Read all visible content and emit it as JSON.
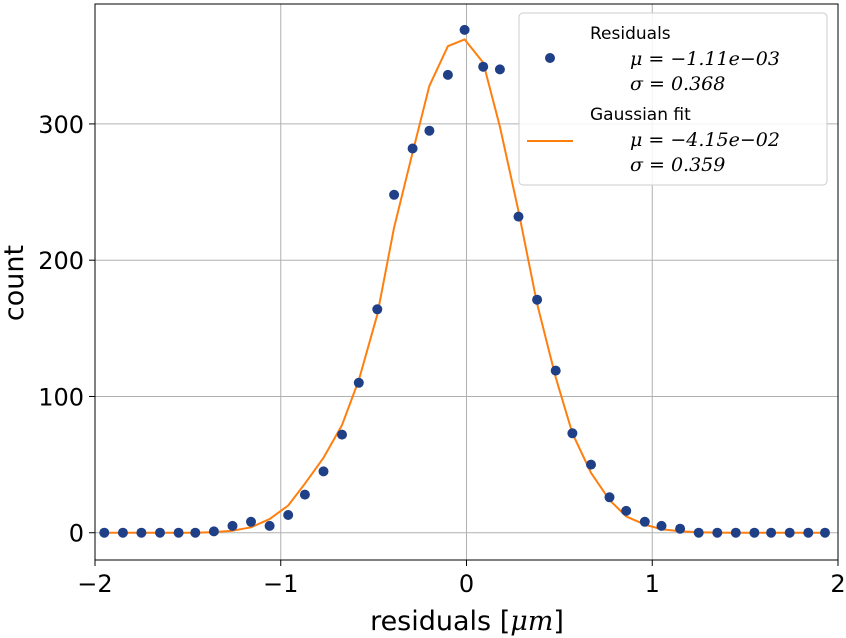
{
  "chart_data": {
    "type": "scatter",
    "xlabel": "residuals [",
    "xlabel_unit": "μm",
    "xlabel_close": "]",
    "ylabel": "count",
    "xlim": [
      -2,
      2
    ],
    "ylim": [
      -20,
      388
    ],
    "grid": true,
    "legend_placement": "top-right",
    "x_ticks": [
      {
        "value": -2,
        "label": "−2"
      },
      {
        "value": -1,
        "label": "−1"
      },
      {
        "value": 0,
        "label": "0"
      },
      {
        "value": 1,
        "label": "1"
      },
      {
        "value": 2,
        "label": "2"
      }
    ],
    "y_ticks": [
      {
        "value": 0,
        "label": "0"
      },
      {
        "value": 100,
        "label": "100"
      },
      {
        "value": 200,
        "label": "200"
      },
      {
        "value": 300,
        "label": "300"
      }
    ],
    "series": [
      {
        "name": "Residuals",
        "kind": "scatter",
        "color": "#1f3f87",
        "legend_lines": [
          "μ = −1.11e−03",
          "σ = 0.368"
        ],
        "x": [
          -1.95,
          -1.85,
          -1.75,
          -1.65,
          -1.55,
          -1.46,
          -1.36,
          -1.26,
          -1.16,
          -1.06,
          -0.96,
          -0.87,
          -0.77,
          -0.67,
          -0.58,
          -0.48,
          -0.39,
          -0.29,
          -0.2,
          -0.1,
          -0.01,
          0.09,
          0.18,
          0.28,
          0.38,
          0.48,
          0.57,
          0.67,
          0.77,
          0.86,
          0.96,
          1.05,
          1.15,
          1.25,
          1.35,
          1.45,
          1.55,
          1.64,
          1.74,
          1.84,
          1.93
        ],
        "y": [
          0,
          0,
          0,
          0,
          0,
          0,
          1,
          5,
          8,
          5,
          13,
          28,
          45,
          72,
          110,
          164,
          248,
          282,
          295,
          336,
          369,
          342,
          340,
          232,
          171,
          119,
          73,
          50,
          26,
          16,
          8,
          5,
          3,
          0,
          0,
          0,
          0,
          0,
          0,
          0,
          0
        ]
      },
      {
        "name": "Gaussian fit",
        "kind": "line",
        "color": "#ff7f0e",
        "legend_lines": [
          "μ = −4.15e−02",
          "σ = 0.359"
        ],
        "x": [
          -1.95,
          -1.85,
          -1.75,
          -1.65,
          -1.55,
          -1.46,
          -1.36,
          -1.26,
          -1.16,
          -1.06,
          -0.96,
          -0.87,
          -0.77,
          -0.67,
          -0.58,
          -0.48,
          -0.39,
          -0.29,
          -0.2,
          -0.1,
          -0.01,
          0.09,
          0.18,
          0.28,
          0.38,
          0.48,
          0.57,
          0.67,
          0.77,
          0.86,
          0.96,
          1.05,
          1.15,
          1.25,
          1.35,
          1.45,
          1.55,
          1.64,
          1.74,
          1.84,
          1.93
        ],
        "y": [
          0,
          0,
          0,
          0,
          0,
          0,
          0.5,
          1.5,
          4,
          10,
          20,
          36,
          55,
          79,
          112,
          160,
          224,
          279,
          328,
          357,
          362,
          345,
          298,
          236,
          168,
          114,
          73,
          44,
          24,
          12,
          6,
          2.6,
          1.1,
          0.4,
          0.1,
          0,
          0,
          0,
          0,
          0,
          0
        ]
      }
    ]
  }
}
